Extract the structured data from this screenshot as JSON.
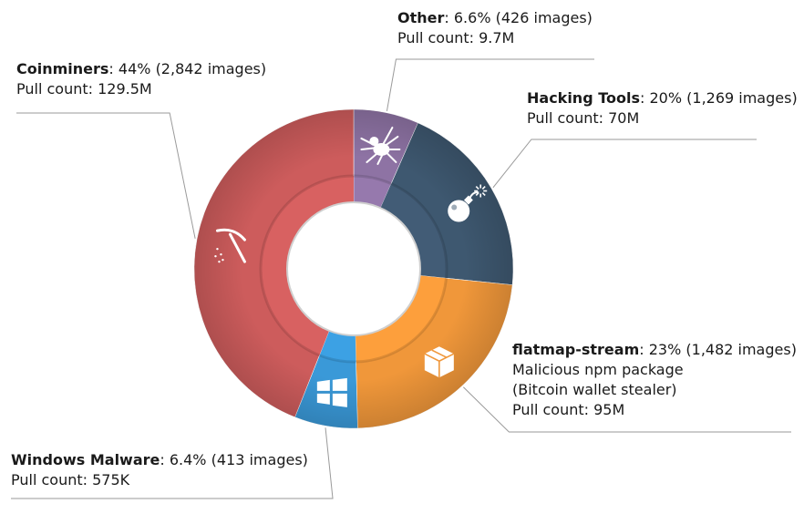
{
  "chart_data": {
    "type": "pie",
    "style": "donut",
    "slices": [
      {
        "name": "Other",
        "percent": 6.6,
        "percent_label": "6.6%",
        "images_label": "(426 images)",
        "images": 426,
        "pull_label": "Pull count: 9.7M",
        "extra_lines": [],
        "color": "#8e73a4",
        "icon": "spider-icon"
      },
      {
        "name": "Hacking Tools",
        "percent": 20,
        "percent_label": "20%",
        "images_label": "(1,269 images)",
        "images": 1269,
        "pull_label": "Pull count: 70M",
        "extra_lines": [],
        "color": "#3e5870",
        "icon": "bomb-icon"
      },
      {
        "name": "flatmap-stream",
        "percent": 23,
        "percent_label": "23%",
        "images_label": "(1,482 images)",
        "images": 1482,
        "pull_label": "Pull count: 95M",
        "extra_lines": [
          "Malicious npm package",
          "(Bitcoin wallet stealer)"
        ],
        "color": "#f0973a",
        "icon": "package-box-icon"
      },
      {
        "name": "Windows Malware",
        "percent": 6.4,
        "percent_label": "6.4%",
        "images_label": "(413 images)",
        "images": 413,
        "pull_label": "Pull count: 575K",
        "extra_lines": [],
        "color": "#3a99d8",
        "icon": "windows-logo-icon"
      },
      {
        "name": "Coinminers",
        "percent": 44,
        "percent_label": "44%",
        "images_label": "(2,842 images)",
        "images": 2842,
        "pull_label": "Pull count: 129.5M",
        "extra_lines": [],
        "color": "#cd5c5c",
        "icon": "pickaxe-icon"
      }
    ]
  }
}
